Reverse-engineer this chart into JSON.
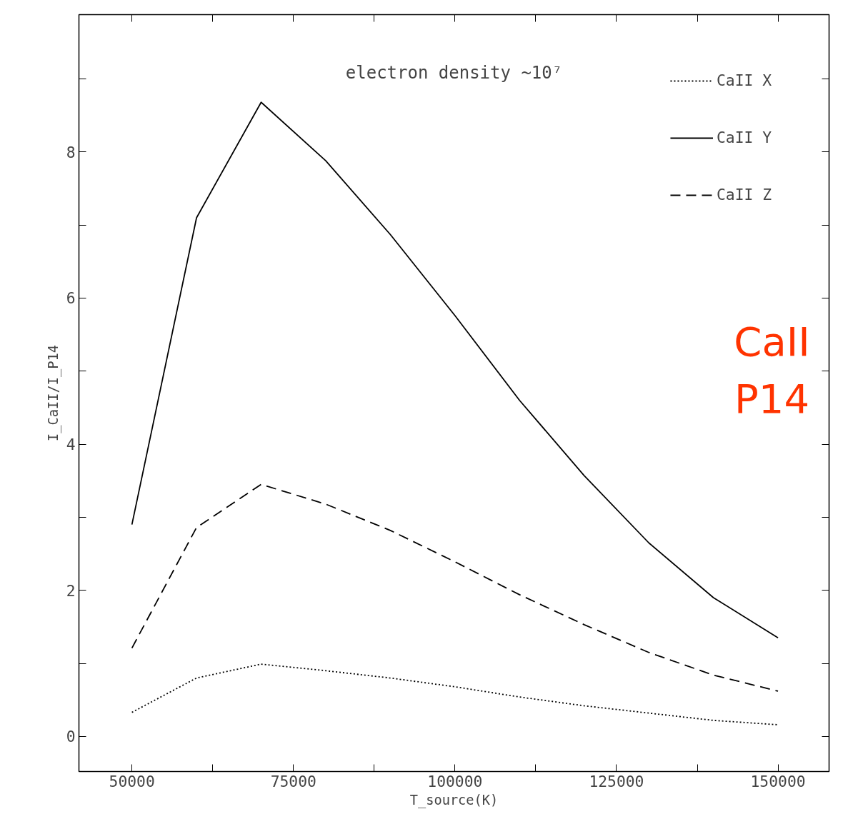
{
  "chart_data": {
    "type": "line",
    "title": "electron density ~10⁷",
    "xlabel": "T_source(K)",
    "ylabel": "I_CaII/I_P14",
    "x": [
      50000,
      60000,
      70000,
      80000,
      90000,
      100000,
      110000,
      120000,
      130000,
      140000,
      150000
    ],
    "xlim": [
      41800,
      157900
    ],
    "xticks": [
      50000,
      {
        "value": 62500,
        "label": null
      },
      75000,
      {
        "value": 87500,
        "label": null
      },
      100000,
      {
        "value": 112500,
        "label": null
      },
      125000,
      {
        "value": 137500,
        "label": null
      },
      150000
    ],
    "ylim": [
      -0.48,
      9.88
    ],
    "yticks": [
      0,
      {
        "value": 1,
        "label": null
      },
      2,
      {
        "value": 3,
        "label": null
      },
      4,
      {
        "value": 5,
        "label": null
      },
      6,
      {
        "value": 7,
        "label": null
      },
      8,
      {
        "value": 9,
        "label": null
      }
    ],
    "grid": false,
    "legend": "top right",
    "marker": "none",
    "series": [
      {
        "name": "CaII X",
        "color": "#000000",
        "line_style": "dotted",
        "values": [
          0.33,
          0.8,
          0.99,
          0.9,
          0.8,
          0.68,
          0.54,
          0.42,
          0.32,
          0.22,
          0.16
        ]
      },
      {
        "name": "CaII Y",
        "color": "#000000",
        "line_style": "solid",
        "values": [
          2.9,
          7.1,
          8.68,
          7.88,
          6.87,
          5.76,
          4.6,
          3.57,
          2.65,
          1.9,
          1.35
        ]
      },
      {
        "name": "CaII Z",
        "color": "#000000",
        "line_style": "dashed",
        "values": [
          1.21,
          2.86,
          3.45,
          3.18,
          2.82,
          2.39,
          1.94,
          1.53,
          1.15,
          0.84,
          0.62
        ]
      }
    ],
    "annotations": [
      "CaII",
      "P14"
    ]
  }
}
